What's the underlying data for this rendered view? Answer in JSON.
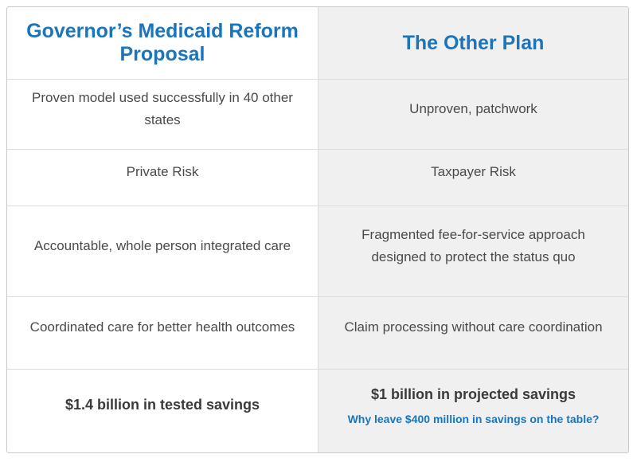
{
  "table": {
    "columns": [
      {
        "header": "Governor’s Medicaid Reform Proposal"
      },
      {
        "header": "The Other Plan"
      }
    ],
    "rows": [
      {
        "left": "Proven model used successfully in 40 other states",
        "right": "Unproven, patchwork"
      },
      {
        "left": "Private Risk",
        "right": "Taxpayer Risk"
      },
      {
        "left": "Accountable, whole person integrated care",
        "right": "Fragmented fee-for-service approach designed to protect the status quo"
      },
      {
        "left": "Coordinated care for better health outcomes",
        "right": "Claim processing without care coordination"
      },
      {
        "left": "$1.4 billion in tested savings",
        "right": "$1 billion in projected savings",
        "right_note": "Why leave $400 million in savings on the table?"
      }
    ],
    "colors": {
      "header_blue": "#1b75bc",
      "body_text": "#4a4a4a",
      "emphasis_text": "#3a3a3a",
      "alt_column_bg": "#f0f0f0",
      "border": "#dcdcdc",
      "outer_border": "#c9c9c9"
    }
  }
}
